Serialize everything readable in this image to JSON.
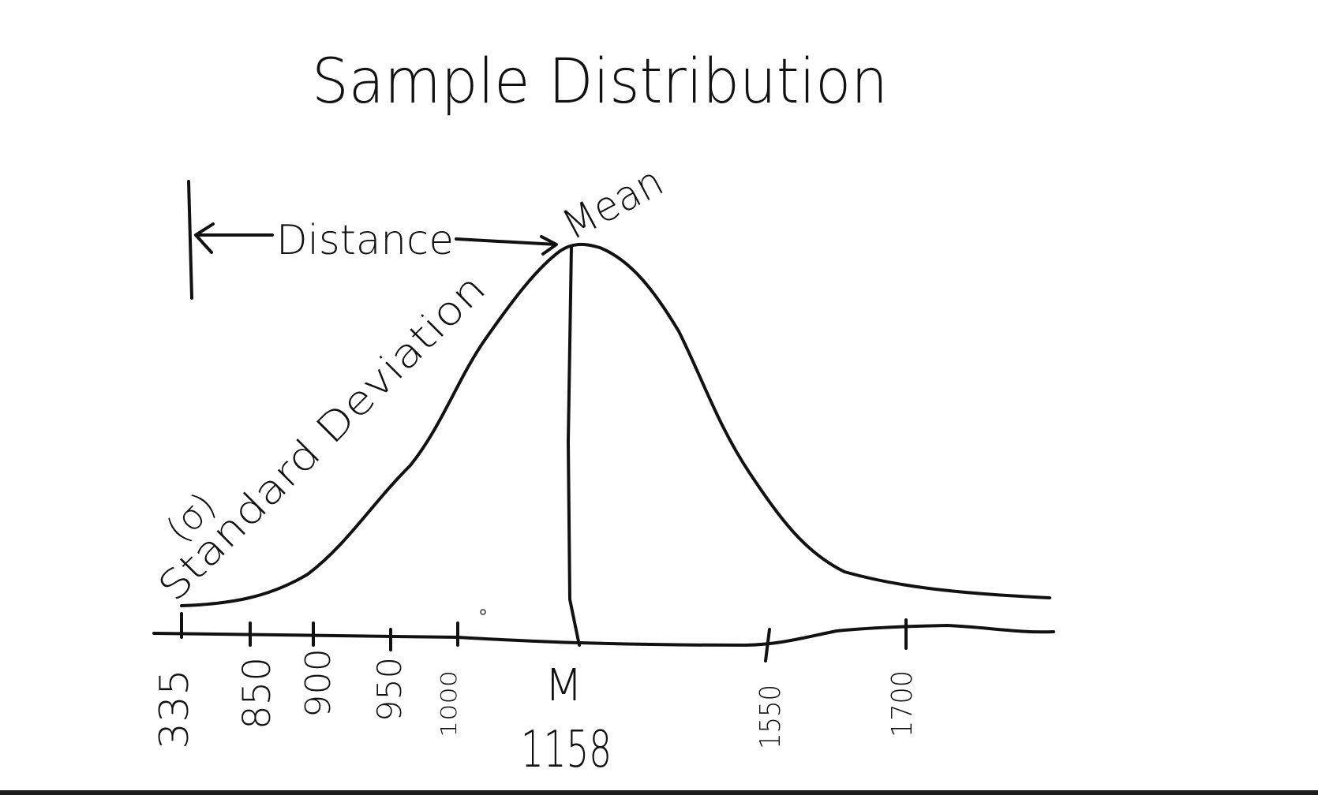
{
  "title": "Sample Distribution",
  "labels": {
    "distance": "Distance",
    "mean": "Mean",
    "std_dev": "Standard Deviation",
    "sigma": "(σ)",
    "mu": "M",
    "mean_value": "1158"
  },
  "ticks": [
    "335",
    "850",
    "900",
    "950",
    "1000",
    "1550",
    "1700"
  ],
  "colors": {
    "ink": "#111111",
    "background": "#ffffff",
    "bar": "#1c1c1c"
  }
}
